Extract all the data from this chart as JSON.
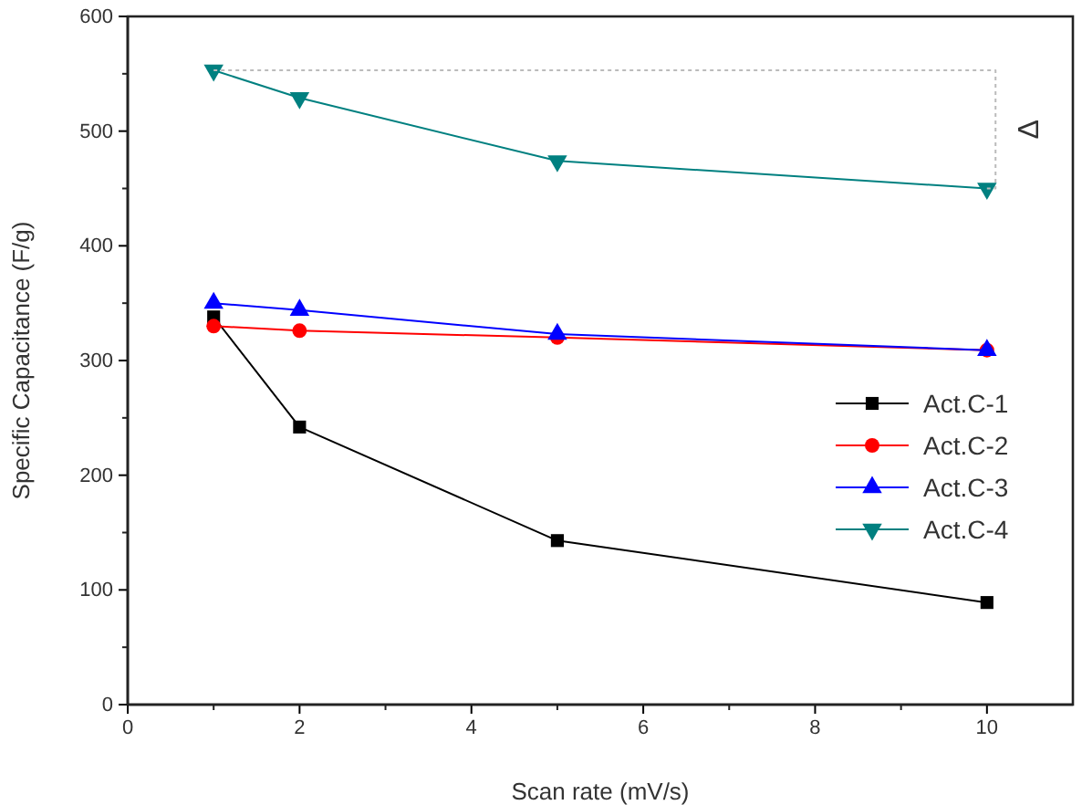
{
  "chart_data": {
    "type": "line",
    "xlabel": "Scan rate (mV/s)",
    "ylabel": "Specific Capacitance (F/g)",
    "x": [
      1,
      2,
      5,
      10
    ],
    "series": [
      {
        "name": "Act.C-1",
        "color": "#000000",
        "marker": "square",
        "values": [
          338,
          242,
          143,
          89
        ]
      },
      {
        "name": "Act.C-2",
        "color": "#ff0000",
        "marker": "circle",
        "values": [
          330,
          326,
          320,
          309
        ]
      },
      {
        "name": "Act.C-3",
        "color": "#0000ff",
        "marker": "triangle",
        "values": [
          350,
          344,
          323,
          309
        ]
      },
      {
        "name": "Act.C-4",
        "color": "#008080",
        "marker": "triangle-down",
        "values": [
          553,
          529,
          474,
          450
        ]
      },
      {
        "color": "#bbbbbb",
        "marker": "none",
        "line_style": "dotted",
        "x": [
          1,
          10.1,
          10.1,
          10
        ],
        "values": [
          553,
          553,
          450,
          450
        ]
      }
    ],
    "annotations": [
      "Δ"
    ],
    "xlim": [
      0,
      11
    ],
    "xticks": [
      0,
      2,
      4,
      6,
      8,
      10
    ],
    "ylim": [
      0,
      600
    ],
    "yticks": [
      0,
      100,
      200,
      300,
      400,
      500,
      600
    ],
    "grid": false,
    "legend": "right",
    "line_style": "solid"
  }
}
